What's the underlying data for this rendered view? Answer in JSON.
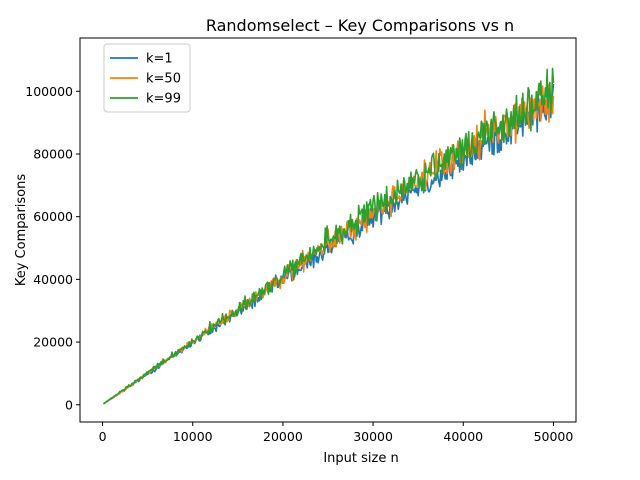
{
  "chart_data": {
    "type": "line",
    "title": "Randomselect – Key Comparisons vs n",
    "xlabel": "Input size n",
    "ylabel": "Key Comparisons",
    "xlim": [
      -2500,
      52500
    ],
    "ylim": [
      -5500,
      117000
    ],
    "xticks": [
      0,
      10000,
      20000,
      30000,
      40000,
      50000
    ],
    "xtick_labels": [
      "0",
      "10000",
      "20000",
      "30000",
      "40000",
      "50000"
    ],
    "yticks": [
      0,
      20000,
      40000,
      60000,
      80000,
      100000
    ],
    "ytick_labels": [
      "0",
      "20000",
      "40000",
      "60000",
      "80000",
      "100000"
    ],
    "grid": false,
    "legend_position": "top-left",
    "x": [
      100,
      2500,
      5000,
      7500,
      10000,
      12500,
      15000,
      17500,
      20000,
      22500,
      25000,
      27500,
      30000,
      32500,
      35000,
      37500,
      40000,
      42500,
      45000,
      47500,
      50000
    ],
    "series": [
      {
        "name": "k=1",
        "color": "#1f77b4",
        "values": [
          300,
          4800,
          9800,
          14800,
          19800,
          24500,
          29500,
          34500,
          40000,
          44500,
          50000,
          54500,
          60000,
          65000,
          70000,
          73000,
          78000,
          83000,
          88000,
          92000,
          96000
        ]
      },
      {
        "name": "k=50",
        "color": "#ff7f0e",
        "values": [
          300,
          5000,
          10200,
          15200,
          20200,
          25200,
          30200,
          35200,
          40500,
          46000,
          51500,
          56000,
          61000,
          66500,
          72000,
          76000,
          81000,
          86500,
          90000,
          94000,
          97000
        ]
      },
      {
        "name": "k=99",
        "color": "#2ca02c",
        "values": [
          300,
          5100,
          10100,
          15300,
          20300,
          25500,
          30500,
          35500,
          41000,
          46500,
          52500,
          57000,
          62500,
          67000,
          72500,
          75500,
          81500,
          87000,
          90500,
          96000,
          99000
        ]
      }
    ],
    "noise": {
      "relative_amplitude": [
        0.06,
        0.06,
        0.07
      ],
      "points_per_series": 500
    }
  }
}
